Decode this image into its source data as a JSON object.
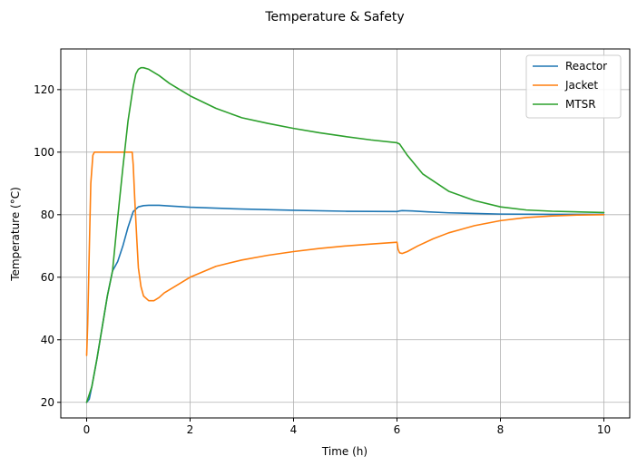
{
  "chart_data": {
    "type": "line",
    "title": "Temperature & Safety",
    "xlabel": "Time (h)",
    "ylabel": "Temperature (°C)",
    "xlim": [
      -0.5,
      10.5
    ],
    "ylim": [
      15,
      133
    ],
    "xticks": [
      0,
      2,
      4,
      6,
      8,
      10
    ],
    "yticks": [
      20,
      40,
      60,
      80,
      100,
      120
    ],
    "grid": true,
    "legend_position": "top-right",
    "series": [
      {
        "name": "Reactor",
        "color": "#1f77b4",
        "x": [
          0,
          0.05,
          0.1,
          0.2,
          0.3,
          0.4,
          0.5,
          0.6,
          0.7,
          0.8,
          0.9,
          1.0,
          1.1,
          1.2,
          1.4,
          1.6,
          2,
          3,
          4,
          5,
          6,
          6.05,
          6.1,
          6.3,
          6.6,
          7,
          7.5,
          8,
          9,
          10
        ],
        "y": [
          20,
          21,
          25,
          34,
          44,
          54,
          62,
          65,
          70,
          76,
          81,
          82.5,
          82.9,
          83,
          83,
          82.8,
          82.4,
          81.8,
          81.4,
          81.1,
          81,
          81.2,
          81.3,
          81.2,
          80.9,
          80.6,
          80.4,
          80.2,
          80.1,
          80.1
        ]
      },
      {
        "name": "Jacket",
        "color": "#ff7f0e",
        "x": [
          0,
          0.02,
          0.05,
          0.08,
          0.12,
          0.15,
          0.2,
          0.4,
          0.6,
          0.8,
          0.88,
          0.9,
          0.93,
          0.97,
          1.0,
          1.05,
          1.1,
          1.2,
          1.3,
          1.4,
          1.5,
          1.7,
          2,
          2.5,
          3,
          3.5,
          4,
          4.5,
          5,
          5.5,
          6,
          6.02,
          6.05,
          6.1,
          6.2,
          6.4,
          6.7,
          7,
          7.5,
          8,
          8.5,
          9,
          9.5,
          10
        ],
        "y": [
          35,
          45,
          68,
          90,
          99,
          100,
          100,
          100,
          100,
          100,
          100,
          96,
          85,
          72,
          63,
          57,
          54,
          52.5,
          52.5,
          53.5,
          55,
          57,
          60,
          63.5,
          65.5,
          67,
          68.2,
          69.2,
          70,
          70.6,
          71.2,
          69,
          67.8,
          67.6,
          68.2,
          70,
          72.3,
          74.2,
          76.5,
          78.1,
          79.1,
          79.6,
          79.9,
          80
        ]
      },
      {
        "name": "MTSR",
        "color": "#2ca02c",
        "x": [
          0,
          0.1,
          0.2,
          0.3,
          0.4,
          0.5,
          0.6,
          0.7,
          0.8,
          0.9,
          0.95,
          1.0,
          1.05,
          1.1,
          1.2,
          1.4,
          1.6,
          2,
          2.5,
          3,
          3.5,
          4,
          4.5,
          5,
          5.5,
          6,
          6.05,
          6.2,
          6.5,
          7,
          7.5,
          8,
          8.5,
          9,
          10
        ],
        "y": [
          20,
          25,
          34,
          44,
          54,
          62,
          79,
          95,
          110,
          121,
          125,
          126.5,
          127,
          127,
          126.5,
          124.5,
          122,
          118,
          114,
          111,
          109.2,
          107.6,
          106.2,
          105,
          103.9,
          103,
          102.6,
          99,
          93,
          87.5,
          84.5,
          82.5,
          81.5,
          81.1,
          80.7
        ]
      }
    ]
  }
}
